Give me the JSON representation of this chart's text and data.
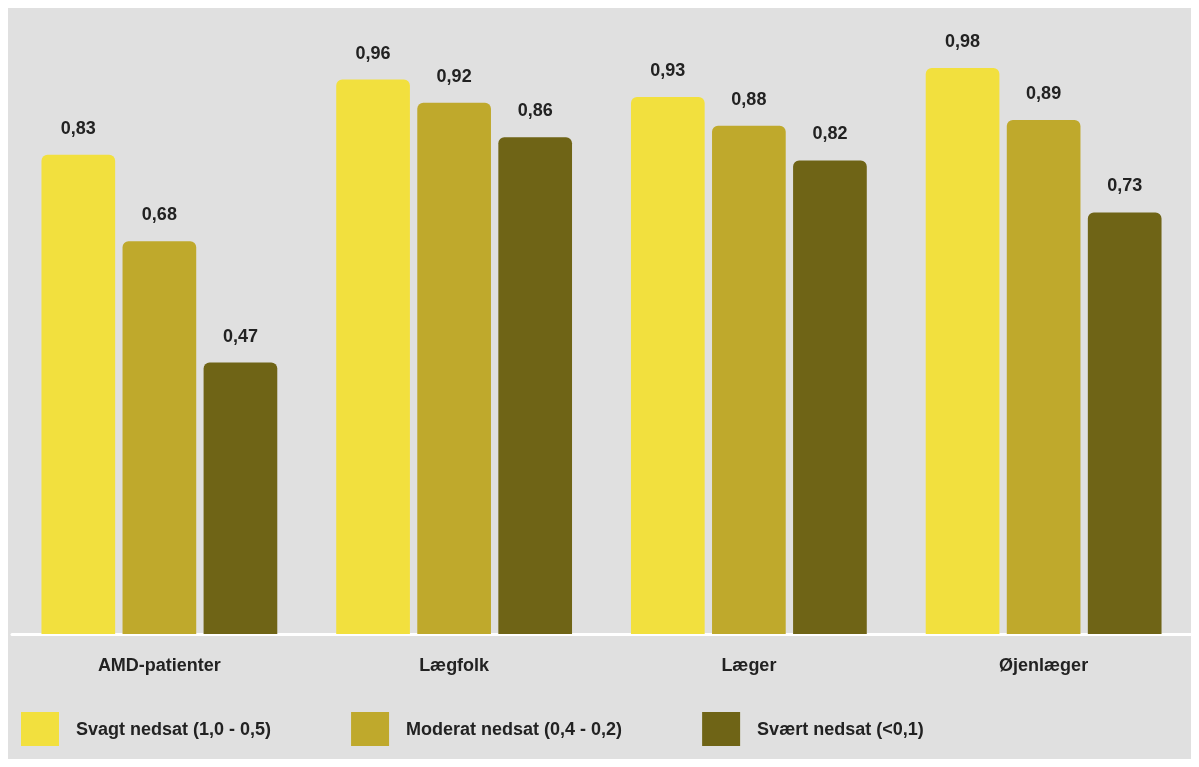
{
  "chart_data": {
    "type": "bar",
    "categories": [
      "AMD-patienter",
      "Lægfolk",
      "Læger",
      "Øjenlæger"
    ],
    "series": [
      {
        "name": "Svagt nedsat (1,0 - 0,5)",
        "color": "#f2e03e",
        "values": [
          0.83,
          0.96,
          0.93,
          0.98
        ],
        "value_labels": [
          "0,83",
          "0,96",
          "0,93",
          "0,98"
        ]
      },
      {
        "name": "Moderat nedsat (0,4 - 0,2)",
        "color": "#bfa92c",
        "values": [
          0.68,
          0.92,
          0.88,
          0.89
        ],
        "value_labels": [
          "0,68",
          "0,92",
          "0,88",
          "0,89"
        ]
      },
      {
        "name": "Svært nedsat (<0,1)",
        "color": "#6f6416",
        "values": [
          0.47,
          0.86,
          0.82,
          0.73
        ],
        "value_labels": [
          "0,47",
          "0,86",
          "0,82",
          "0,73"
        ]
      }
    ],
    "legend": "bottom left"
  }
}
